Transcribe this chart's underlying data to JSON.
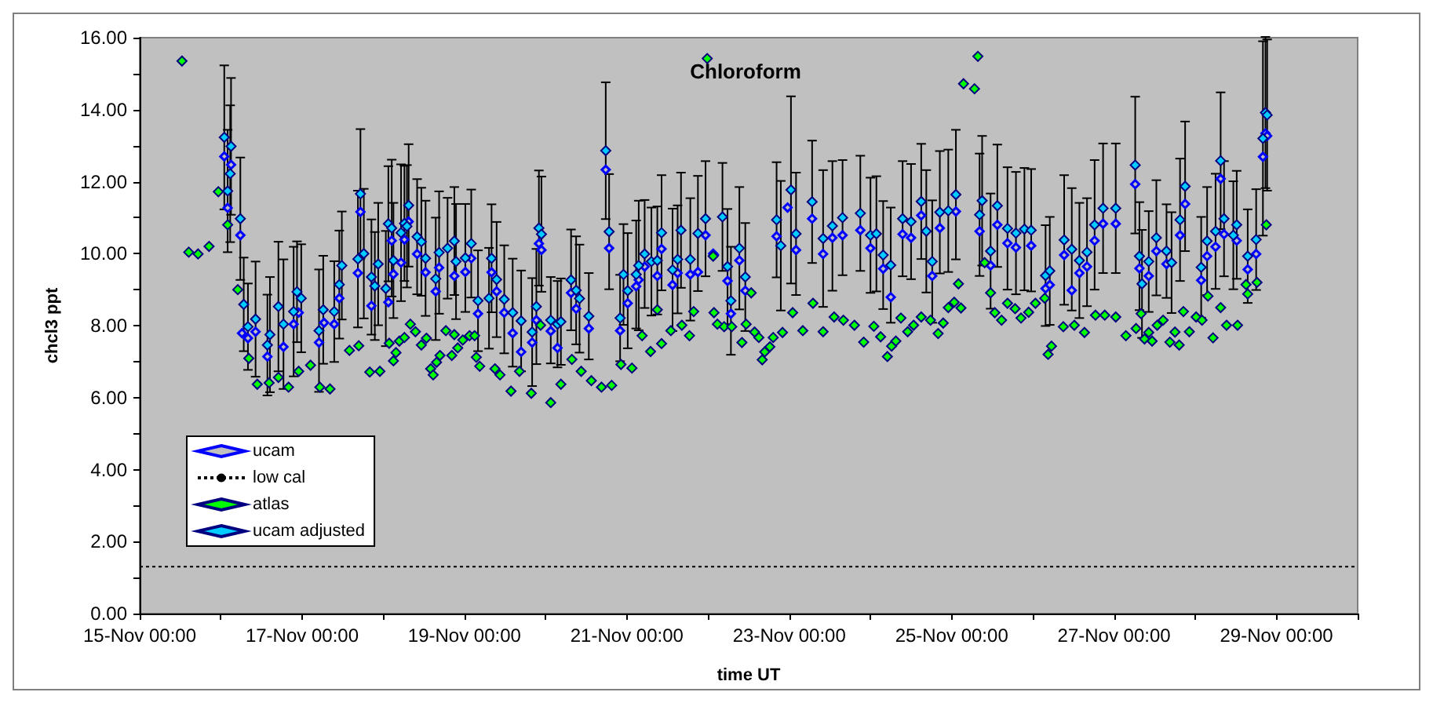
{
  "chart_data": {
    "type": "scatter",
    "title": "Chloroform",
    "xlabel": "time UT",
    "ylabel": "chcl3 ppt",
    "xlim": [
      "--11-15T00:00",
      "--11-30T00:00"
    ],
    "xticks": [
      {
        "value": "--11-15T00:00",
        "label": "15-Nov 00:00"
      },
      {
        "value": "--11-16T00:00",
        "label": null
      },
      {
        "value": "--11-17T00:00",
        "label": "17-Nov 00:00"
      },
      {
        "value": "--11-18T00:00",
        "label": null
      },
      {
        "value": "--11-19T00:00",
        "label": "19-Nov 00:00"
      },
      {
        "value": "--11-20T00:00",
        "label": null
      },
      {
        "value": "--11-21T00:00",
        "label": "21-Nov 00:00"
      },
      {
        "value": "--11-22T00:00",
        "label": null
      },
      {
        "value": "--11-23T00:00",
        "label": "23-Nov 00:00"
      },
      {
        "value": "--11-24T00:00",
        "label": null
      },
      {
        "value": "--11-25T00:00",
        "label": "25-Nov 00:00"
      },
      {
        "value": "--11-26T00:00",
        "label": null
      },
      {
        "value": "--11-27T00:00",
        "label": "27-Nov 00:00"
      },
      {
        "value": "--11-28T00:00",
        "label": null
      },
      {
        "value": "--11-29T00:00",
        "label": "29-Nov 00:00"
      },
      {
        "value": "--11-30T00:00",
        "label": null
      }
    ],
    "ylim": [
      0,
      16
    ],
    "yticks": [
      {
        "value": 0,
        "label": "0.00"
      },
      {
        "value": 1,
        "label": null
      },
      {
        "value": 2,
        "label": "2.00"
      },
      {
        "value": 3,
        "label": null
      },
      {
        "value": 4,
        "label": "4.00"
      },
      {
        "value": 5,
        "label": null
      },
      {
        "value": 6,
        "label": "6.00"
      },
      {
        "value": 7,
        "label": null
      },
      {
        "value": 8,
        "label": "8.00"
      },
      {
        "value": 9,
        "label": null
      },
      {
        "value": 10,
        "label": "10.00"
      },
      {
        "value": 11,
        "label": null
      },
      {
        "value": 12,
        "label": "12.00"
      },
      {
        "value": 13,
        "label": null
      },
      {
        "value": 14,
        "label": "14.00"
      },
      {
        "value": 15,
        "label": null
      },
      {
        "value": 16,
        "label": "16.00"
      }
    ],
    "legend": "bottom left",
    "series": [
      {
        "name": "ucam",
        "marker": "diamond",
        "color": "#0000ff",
        "x": [
          "--11-16T01:00",
          "--11-16T02:00",
          "--11-16T03:00",
          "--11-16T05:45",
          "--11-16T06:15",
          "--11-16T08:00",
          "--11-16T10:15",
          "--11-16T13:45",
          "--11-16T18:30",
          "--11-16T21:30",
          "--11-16T23:00",
          "--11-17T05:00",
          "--11-17T06:30",
          "--11-17T09:30",
          "--11-17T11:00",
          "--11-17T16:30",
          "--11-17T17:15",
          "--11-17T20:30",
          "--11-18T01:30",
          "--11-18T02:30",
          "--11-18T03:00",
          "--11-18T05:15",
          "--11-18T06:15",
          "--11-18T07:30",
          "--11-18T10:00",
          "--11-18T12:30",
          "--11-18T15:30",
          "--11-18T16:30",
          "--11-18T21:00",
          "--11-19T00:15",
          "--11-19T02:00",
          "--11-19T04:00",
          "--11-19T08:00",
          "--11-19T09:30",
          "--11-19T11:45",
          "--11-19T14:15",
          "--11-19T16:45",
          "--11-19T20:00",
          "--11-19T21:15",
          "--11-19T22:00",
          "--11-19T22:45",
          "--11-20T01:30",
          "--11-20T03:30",
          "--11-20T07:30",
          "--11-20T09:00",
          "--11-20T12:45",
          "--11-20T17:45",
          "--11-20T18:45",
          "--11-20T22:00",
          "--11-21T00:15",
          "--11-21T02:45",
          "--11-21T03:30",
          "--11-21T05:15",
          "--11-21T09:00",
          "--11-21T10:15",
          "--11-21T13:30",
          "--11-21T15:00",
          "--11-21T18:45",
          "--11-21T21:00",
          "--11-21T23:15",
          "--11-22T01:30",
          "--11-22T01:45",
          "--11-22T05:45",
          "--11-22T06:45",
          "--11-22T09:15",
          "--11-22T11:00",
          "--11-22T20:15",
          "--11-22T23:30",
          "--11-23T02:00",
          "--11-23T06:45",
          "--11-23T10:00",
          "--11-23T12:45",
          "--11-23T15:45",
          "--11-23T21:00",
          "--11-24T00:00",
          "--11-24T03:45",
          "--11-24T06:00",
          "--11-24T09:30",
          "--11-24T12:00",
          "--11-24T15:00",
          "--11-24T18:15",
          "--11-24T20:30",
          "--11-25T01:15",
          "--11-25T08:15",
          "--11-25T11:30",
          "--11-25T13:30",
          "--11-25T16:30",
          "--11-25T19:00",
          "--11-25T23:30",
          "--11-26T03:45",
          "--11-26T05:00",
          "--11-26T09:15",
          "--11-26T11:30",
          "--11-26T13:45",
          "--11-26T16:00",
          "--11-26T18:15",
          "--11-26T20:45",
          "--11-27T00:30",
          "--11-27T06:15",
          "--11-27T07:30",
          "--11-27T10:15",
          "--11-27T12:30",
          "--11-27T15:30",
          "--11-27T19:30",
          "--11-27T21:00",
          "--11-28T01:45",
          "--11-28T03:30",
          "--11-28T06:00",
          "--11-28T07:30",
          "--11-28T08:30",
          "--11-28T12:15",
          "--11-28T15:30",
          "--11-28T18:00",
          "--11-28T20:00",
          "--11-28T20:45",
          "--11-28T21:15"
        ],
        "values": [
          12.7,
          11.27,
          12.47,
          10.51,
          7.79,
          7.65,
          7.83,
          7.14,
          7.41,
          8.04,
          8.36,
          7.53,
          8.08,
          8.04,
          8.76,
          9.46,
          11.16,
          8.55,
          8.65,
          10.36,
          9.43,
          9.75,
          10.39,
          10.89,
          9.99,
          9.48,
          8.95,
          9.61,
          9.38,
          9.49,
          9.87,
          8.33,
          9.48,
          8.95,
          8.36,
          7.79,
          7.27,
          7.53,
          8.15,
          10.28,
          10.1,
          7.85,
          7.38,
          8.91,
          8.47,
          7.92,
          12.33,
          10.15,
          7.86,
          8.62,
          9.09,
          9.27,
          9.64,
          9.38,
          10.13,
          9.13,
          9.46,
          9.42,
          9.49,
          10.51,
          10.0,
          9.96,
          9.24,
          8.33,
          9.81,
          8.97,
          10.48,
          11.28,
          10.1,
          10.97,
          9.99,
          10.44,
          10.51,
          10.65,
          10.15,
          9.58,
          8.79,
          10.54,
          10.44,
          11.06,
          9.38,
          10.71,
          11.17,
          10.62,
          9.67,
          10.8,
          10.29,
          10.17,
          10.22,
          9.03,
          9.13,
          9.96,
          8.98,
          9.46,
          9.64,
          10.36,
          10.83,
          10.83,
          11.93,
          9.59,
          9.38,
          10.07,
          9.71,
          10.51,
          11.38,
          9.26,
          9.93,
          10.19,
          12.08,
          10.54,
          10.36,
          9.56,
          9.99,
          12.69,
          13.34,
          13.27
        ]
      },
      {
        "name": "low cal",
        "type": "line",
        "marker": "none",
        "line_style": "dotted",
        "color": "#000000",
        "x": [
          "--11-15T00:00",
          "--11-30T00:00"
        ],
        "values": [
          1.3,
          1.3
        ]
      },
      {
        "name": "atlas",
        "marker": "diamond",
        "color": "#00ff00",
        "x": [
          "--11-15T12:30",
          "--11-15T14:30",
          "--11-15T17:15",
          "--11-15T20:30",
          "--11-15T23:15",
          "--11-16T02:00",
          "--11-16T05:00",
          "--11-16T08:15",
          "--11-16T10:45",
          "--11-16T14:15",
          "--11-16T17:00",
          "--11-16T20:00",
          "--11-16T23:00",
          "--11-17T02:30",
          "--11-17T05:15",
          "--11-17T08:15",
          "--11-17T14:00",
          "--11-17T16:45",
          "--11-17T20:00",
          "--11-17T23:00",
          "--11-18T01:45",
          "--11-18T03:00",
          "--11-18T03:45",
          "--11-18T04:45",
          "--11-18T06:15",
          "--11-18T08:00",
          "--11-18T09:30",
          "--11-18T11:15",
          "--11-18T12:45",
          "--11-18T14:00",
          "--11-18T14:45",
          "--11-18T15:45",
          "--11-18T16:45",
          "--11-18T18:30",
          "--11-18T20:15",
          "--11-18T21:00",
          "--11-18T22:00",
          "--11-18T23:30",
          "--11-19T01:30",
          "--11-19T03:00",
          "--11-19T03:30",
          "--11-19T04:30",
          "--11-19T09:00",
          "--11-19T10:30",
          "--11-19T13:45",
          "--11-19T16:15",
          "--11-19T19:45",
          "--11-19T22:30",
          "--11-20T01:30",
          "--11-20T04:30",
          "--11-20T07:45",
          "--11-20T10:30",
          "--11-20T13:30",
          "--11-20T16:30",
          "--11-20T19:30",
          "--11-20T22:15",
          "--11-21T01:30",
          "--11-21T04:30",
          "--11-21T07:00",
          "--11-21T09:00",
          "--11-21T10:15",
          "--11-21T13:00",
          "--11-21T16:15",
          "--11-21T18:30",
          "--11-21T19:45",
          "--11-21T23:45",
          "--11-22T01:30",
          "--11-22T01:45",
          "--11-22T02:45",
          "--11-22T04:45",
          "--11-22T07:00",
          "--11-22T10:00",
          "--11-22T11:15",
          "--11-22T12:45",
          "--11-22T13:45",
          "--11-22T15:00",
          "--11-22T16:00",
          "--11-22T16:45",
          "--11-22T18:15",
          "--11-22T19:15",
          "--11-22T22:00",
          "--11-23T01:00",
          "--11-23T04:00",
          "--11-23T07:00",
          "--11-23T10:00",
          "--11-23T13:15",
          "--11-23T16:00",
          "--11-23T19:15",
          "--11-23T22:00",
          "--11-24T01:00",
          "--11-24T03:00",
          "--11-24T05:00",
          "--11-24T06:15",
          "--11-24T07:30",
          "--11-24T09:00",
          "--11-24T11:00",
          "--11-24T12:45",
          "--11-24T15:00",
          "--11-24T17:45",
          "--11-24T20:00",
          "--11-24T21:30",
          "--11-24T23:00",
          "--11-25T00:45",
          "--11-25T02:00",
          "--11-25T02:45",
          "--11-25T03:30",
          "--11-25T06:45",
          "--11-25T07:45",
          "--11-25T09:45",
          "--11-25T11:30",
          "--11-25T12:45",
          "--11-25T14:45",
          "--11-25T16:30",
          "--11-25T18:45",
          "--11-25T20:30",
          "--11-25T22:45",
          "--11-26T00:45",
          "--11-26T03:30",
          "--11-26T04:30",
          "--11-26T05:30",
          "--11-26T09:00",
          "--11-26T12:15",
          "--11-26T15:15",
          "--11-26T18:30",
          "--11-26T21:15",
          "--11-27T00:30",
          "--11-27T03:30",
          "--11-27T06:30",
          "--11-27T08:00",
          "--11-27T09:00",
          "--11-27T10:15",
          "--11-27T11:15",
          "--11-27T12:45",
          "--11-27T14:30",
          "--11-27T16:30",
          "--11-27T18:00",
          "--11-27T19:15",
          "--11-27T20:30",
          "--11-27T22:15",
          "--11-28T00:15",
          "--11-28T02:00",
          "--11-28T03:45",
          "--11-28T05:15",
          "--11-28T07:30",
          "--11-28T09:15",
          "--11-28T12:30",
          "--11-28T15:00",
          "--11-28T15:30",
          "--11-28T18:15",
          "--11-28T21:00"
        ],
        "values": [
          15.35,
          10.04,
          9.99,
          10.2,
          11.72,
          10.8,
          9.0,
          7.09,
          6.37,
          6.41,
          6.56,
          6.29,
          6.73,
          6.9,
          6.29,
          6.24,
          7.31,
          7.44,
          6.71,
          6.73,
          7.51,
          7.02,
          7.25,
          7.57,
          7.67,
          8.04,
          7.83,
          7.46,
          7.65,
          6.8,
          6.63,
          6.98,
          7.17,
          7.86,
          7.17,
          7.75,
          7.38,
          7.6,
          7.72,
          7.72,
          7.12,
          6.87,
          6.8,
          6.63,
          6.18,
          6.73,
          6.12,
          8.01,
          5.86,
          6.37,
          7.06,
          6.73,
          6.47,
          6.29,
          6.34,
          6.92,
          6.82,
          7.72,
          7.28,
          8.44,
          7.5,
          7.86,
          8.01,
          7.72,
          8.39,
          15.42,
          9.93,
          8.36,
          8.04,
          7.97,
          7.97,
          7.53,
          8.04,
          8.91,
          7.82,
          7.67,
          7.05,
          7.27,
          7.41,
          7.67,
          7.81,
          8.36,
          7.86,
          8.62,
          7.83,
          8.24,
          8.15,
          8.01,
          7.54,
          7.98,
          7.69,
          7.14,
          7.43,
          7.57,
          8.21,
          7.83,
          8.01,
          8.24,
          8.15,
          7.78,
          8.07,
          8.5,
          8.65,
          9.16,
          8.49,
          14.72,
          14.58,
          15.48,
          9.75,
          8.91,
          8.36,
          8.15,
          8.62,
          8.47,
          8.21,
          8.37,
          8.62,
          8.76,
          7.2,
          7.43,
          7.97,
          8.01,
          7.81,
          8.29,
          8.29,
          8.24,
          7.72,
          7.92,
          8.33,
          7.63,
          7.81,
          7.57,
          8.01,
          8.15,
          7.54,
          7.82,
          7.46,
          8.39,
          7.83,
          8.24,
          8.15,
          8.82,
          7.66,
          8.5,
          8.01,
          8.01,
          9.14,
          8.88,
          9.2,
          10.8
        ]
      },
      {
        "name": "ucam adjusted",
        "marker": "diamond",
        "color": "#00ccff",
        "x": [
          "--11-16T01:00",
          "--11-16T02:00",
          "--11-16T02:45",
          "--11-16T03:00",
          "--11-16T05:45",
          "--11-16T06:45",
          "--11-16T08:00",
          "--11-16T10:15",
          "--11-16T13:45",
          "--11-16T14:30",
          "--11-16T17:00",
          "--11-16T18:30",
          "--11-16T21:30",
          "--11-16T22:30",
          "--11-16T23:45",
          "--11-17T05:00",
          "--11-17T06:15",
          "--11-17T09:30",
          "--11-17T11:00",
          "--11-17T11:45",
          "--11-17T16:30",
          "--11-17T17:15",
          "--11-17T18:15",
          "--11-17T20:30",
          "--11-17T21:30",
          "--11-17T22:30",
          "--11-18T00:45",
          "--11-18T01:30",
          "--11-18T02:30",
          "--11-18T03:00",
          "--11-18T05:15",
          "--11-18T06:15",
          "--11-18T07:00",
          "--11-18T07:30",
          "--11-18T10:00",
          "--11-18T11:15",
          "--11-18T12:30",
          "--11-18T15:30",
          "--11-18T16:30",
          "--11-18T19:00",
          "--11-18T21:00",
          "--11-18T21:30",
          "--11-19T00:15",
          "--11-19T02:00",
          "--11-19T04:00",
          "--11-19T07:15",
          "--11-19T08:00",
          "--11-19T09:30",
          "--11-19T11:45",
          "--11-19T14:15",
          "--11-19T16:45",
          "--11-19T20:00",
          "--11-19T21:15",
          "--11-19T22:00",
          "--11-19T22:45",
          "--11-20T01:30",
          "--11-20T03:30",
          "--11-20T04:30",
          "--11-20T07:30",
          "--11-20T09:00",
          "--11-20T10:00",
          "--11-20T12:45",
          "--11-20T17:45",
          "--11-20T18:45",
          "--11-20T22:00",
          "--11-20T23:00",
          "--11-21T00:15",
          "--11-21T02:45",
          "--11-21T03:30",
          "--11-21T05:15",
          "--11-21T07:15",
          "--11-21T09:00",
          "--11-21T10:15",
          "--11-21T13:30",
          "--11-21T15:00",
          "--11-21T16:00",
          "--11-21T18:45",
          "--11-21T21:00",
          "--11-21T23:15",
          "--11-22T04:15",
          "--11-22T05:45",
          "--11-22T06:45",
          "--11-22T09:15",
          "--11-22T11:00",
          "--11-22T20:15",
          "--11-22T21:30",
          "--11-23T00:30",
          "--11-23T02:00",
          "--11-23T06:45",
          "--11-23T10:00",
          "--11-23T12:45",
          "--11-23T15:45",
          "--11-23T21:00",
          "--11-24T00:00",
          "--11-24T01:45",
          "--11-24T03:45",
          "--11-24T06:00",
          "--11-24T09:30",
          "--11-24T12:00",
          "--11-24T15:00",
          "--11-24T16:30",
          "--11-24T18:15",
          "--11-24T20:30",
          "--11-24T23:00",
          "--11-25T01:15",
          "--11-25T08:15",
          "--11-25T09:00",
          "--11-25T11:30",
          "--11-25T13:30",
          "--11-25T16:30",
          "--11-25T19:00",
          "--11-25T21:30",
          "--11-25T23:30",
          "--11-26T03:45",
          "--11-26T05:00",
          "--11-26T09:15",
          "--11-26T11:30",
          "--11-26T13:45",
          "--11-26T16:00",
          "--11-26T18:15",
          "--11-26T20:45",
          "--11-27T00:30",
          "--11-27T06:15",
          "--11-27T07:30",
          "--11-27T08:15",
          "--11-27T10:15",
          "--11-27T12:30",
          "--11-27T15:30",
          "--11-27T17:00",
          "--11-27T19:30",
          "--11-27T21:00",
          "--11-28T01:45",
          "--11-28T03:30",
          "--11-28T06:00",
          "--11-28T07:30",
          "--11-28T08:30",
          "--11-28T11:15",
          "--11-28T12:15",
          "--11-28T15:30",
          "--11-28T18:00",
          "--11-28T20:00",
          "--11-28T20:45",
          "--11-28T21:15"
        ],
        "values": [
          13.23,
          11.74,
          12.22,
          12.98,
          10.97,
          8.59,
          7.97,
          8.18,
          7.46,
          7.75,
          8.53,
          8.04,
          8.39,
          8.94,
          8.76,
          7.86,
          8.44,
          8.39,
          9.14,
          9.67,
          9.85,
          11.66,
          10.0,
          9.35,
          9.1,
          9.71,
          9.03,
          10.83,
          10.71,
          9.81,
          10.58,
          10.84,
          10.76,
          11.34,
          10.47,
          10.33,
          9.87,
          9.3,
          10.03,
          10.15,
          10.35,
          9.78,
          9.88,
          10.28,
          8.69,
          8.76,
          9.87,
          9.28,
          8.73,
          8.36,
          8.13,
          7.82,
          8.53,
          10.71,
          10.54,
          8.15,
          8.04,
          8.11,
          9.27,
          8.98,
          8.75,
          8.26,
          12.86,
          10.61,
          8.21,
          9.42,
          8.97,
          9.42,
          9.67,
          9.99,
          9.78,
          9.81,
          10.58,
          9.55,
          9.84,
          10.65,
          9.84,
          10.56,
          10.97,
          11.02,
          9.64,
          8.69,
          10.15,
          9.35,
          10.94,
          10.22,
          11.77,
          10.55,
          11.44,
          10.42,
          10.77,
          11.0,
          11.12,
          10.51,
          10.55,
          9.96,
          9.68,
          10.97,
          10.89,
          11.45,
          10.62,
          9.78,
          11.15,
          11.19,
          11.64,
          11.08,
          11.47,
          10.07,
          11.33,
          10.7,
          10.57,
          10.68,
          10.65,
          9.39,
          9.52,
          10.38,
          10.12,
          9.81,
          10.04,
          10.8,
          11.26,
          11.26,
          12.46,
          9.93,
          9.16,
          9.78,
          10.44,
          10.07,
          9.75,
          10.94,
          11.87,
          9.62,
          10.35,
          10.62,
          12.58,
          10.97,
          10.51,
          10.8,
          9.93,
          10.39,
          13.2,
          13.92,
          13.85
        ],
        "errors": [
          2.0,
          1.7,
          1.9,
          1.9,
          1.7,
          1.3,
          1.2,
          1.6,
          1.4,
          1.6,
          1.8,
          1.8,
          1.8,
          1.4,
          1.5,
          1.7,
          1.5,
          1.4,
          1.5,
          1.5,
          1.9,
          1.8,
          1.8,
          1.6,
          1.5,
          1.7,
          1.6,
          1.6,
          1.9,
          1.6,
          1.9,
          1.6,
          1.7,
          1.7,
          1.6,
          1.5,
          1.6,
          1.7,
          1.7,
          1.4,
          1.5,
          1.6,
          1.5,
          1.5,
          1.4,
          1.4,
          1.5,
          1.6,
          1.5,
          1.5,
          1.4,
          1.5,
          1.6,
          1.6,
          1.6,
          1.2,
          1.2,
          1.2,
          1.4,
          1.5,
          1.5,
          1.2,
          1.9,
          1.6,
          1.2,
          1.4,
          1.6,
          1.5,
          1.8,
          1.5,
          1.5,
          1.5,
          1.6,
          1.7,
          1.5,
          1.6,
          1.7,
          1.6,
          1.6,
          1.5,
          1.6,
          1.5,
          1.7,
          1.5,
          1.6,
          1.8,
          2.6,
          1.7,
          1.7,
          1.9,
          1.8,
          1.6,
          1.6,
          1.6,
          1.6,
          1.5,
          1.6,
          1.6,
          1.6,
          1.6,
          1.7,
          1.7,
          1.7,
          1.7,
          1.8,
          1.7,
          1.8,
          1.6,
          1.7,
          1.7,
          1.7,
          1.7,
          1.7,
          1.4,
          1.5,
          1.8,
          1.7,
          1.6,
          1.5,
          1.8,
          1.8,
          1.8,
          1.9,
          1.5,
          1.5,
          1.4,
          1.6,
          1.3,
          1.4,
          1.7,
          1.8,
          1.4,
          1.5,
          1.6,
          1.9,
          1.6,
          1.5,
          1.5,
          1.3,
          1.4,
          2.7,
          2.1,
          2.1
        ]
      }
    ]
  }
}
